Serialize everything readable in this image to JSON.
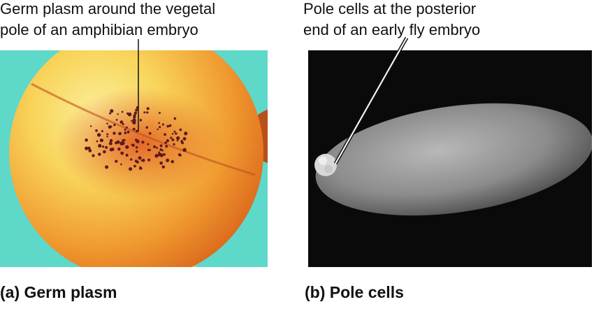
{
  "panels": [
    {
      "annotation": [
        "Germ plasm around the vegetal",
        "pole of an amphibian embryo"
      ],
      "caption": "(a) Germ plasm"
    },
    {
      "annotation": [
        "Pole cells at the posterior",
        "end of an early fly embryo"
      ],
      "caption": "(b) Pole cells"
    }
  ]
}
